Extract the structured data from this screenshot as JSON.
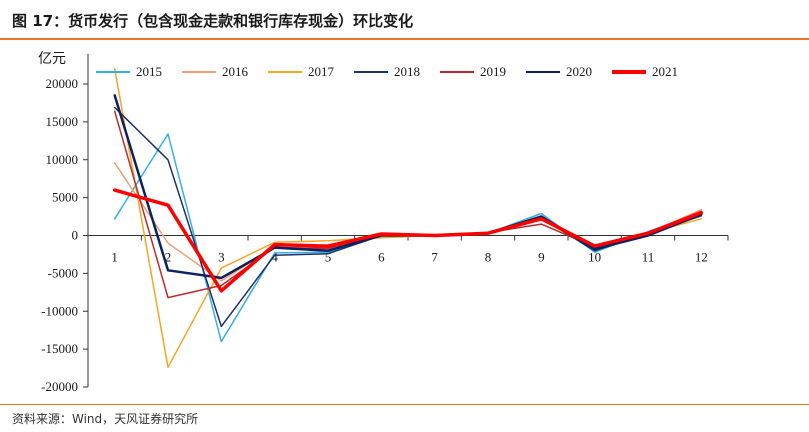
{
  "header": {
    "title": "图 17：货币发行（包含现金走款和银行库存现金）环比变化",
    "unit": "亿元"
  },
  "footer": {
    "source": "资料来源：Wind，天风证券研究所"
  },
  "colors": {
    "accent": "#e8792b"
  },
  "chart_data": {
    "type": "line",
    "title": "图 17：货币发行（包含现金走款和银行库存现金）环比变化",
    "ylabel": "亿元",
    "xlabel": "",
    "x": [
      1,
      2,
      3,
      4,
      5,
      6,
      7,
      8,
      9,
      10,
      11,
      12
    ],
    "ylim": [
      -20000,
      25000
    ],
    "yticks": [
      20000,
      15000,
      10000,
      5000,
      0,
      -5000,
      -10000,
      -15000,
      -20000
    ],
    "legend_position": "top",
    "grid": false,
    "series": [
      {
        "name": "2015",
        "color": "#33b0e0",
        "width": 1.5,
        "values": [
          2200,
          13400,
          -14000,
          -2300,
          -2200,
          0,
          0,
          300,
          2900,
          -2200,
          500,
          3000
        ]
      },
      {
        "name": "2016",
        "color": "#f0a070",
        "width": 1.5,
        "values": [
          9600,
          -1000,
          -6000,
          -1500,
          -1800,
          100,
          100,
          300,
          2600,
          -1700,
          300,
          3400
        ]
      },
      {
        "name": "2017",
        "color": "#f5a623",
        "width": 1.5,
        "values": [
          22000,
          -17400,
          -4300,
          -900,
          -700,
          -300,
          0,
          200,
          2500,
          -1800,
          300,
          2200
        ]
      },
      {
        "name": "2018",
        "color": "#1f2f6b",
        "width": 1.5,
        "values": [
          16900,
          10000,
          -12000,
          -2600,
          -2400,
          0,
          0,
          400,
          2300,
          -2000,
          200,
          2600
        ]
      },
      {
        "name": "2019",
        "color": "#c0282f",
        "width": 1.5,
        "values": [
          16400,
          -8200,
          -6600,
          -1600,
          -1700,
          100,
          100,
          400,
          1500,
          -1500,
          400,
          3200
        ]
      },
      {
        "name": "2020",
        "color": "#0b2160",
        "width": 2.5,
        "values": [
          18500,
          -4600,
          -5600,
          -1600,
          -2000,
          0,
          0,
          300,
          2500,
          -1800,
          0,
          2800
        ]
      },
      {
        "name": "2021",
        "color": "#ff0000",
        "width": 3.5,
        "values": [
          6000,
          4000,
          -7300,
          -1200,
          -1400,
          200,
          0,
          300,
          2200,
          -1400,
          300,
          3000
        ]
      }
    ]
  }
}
